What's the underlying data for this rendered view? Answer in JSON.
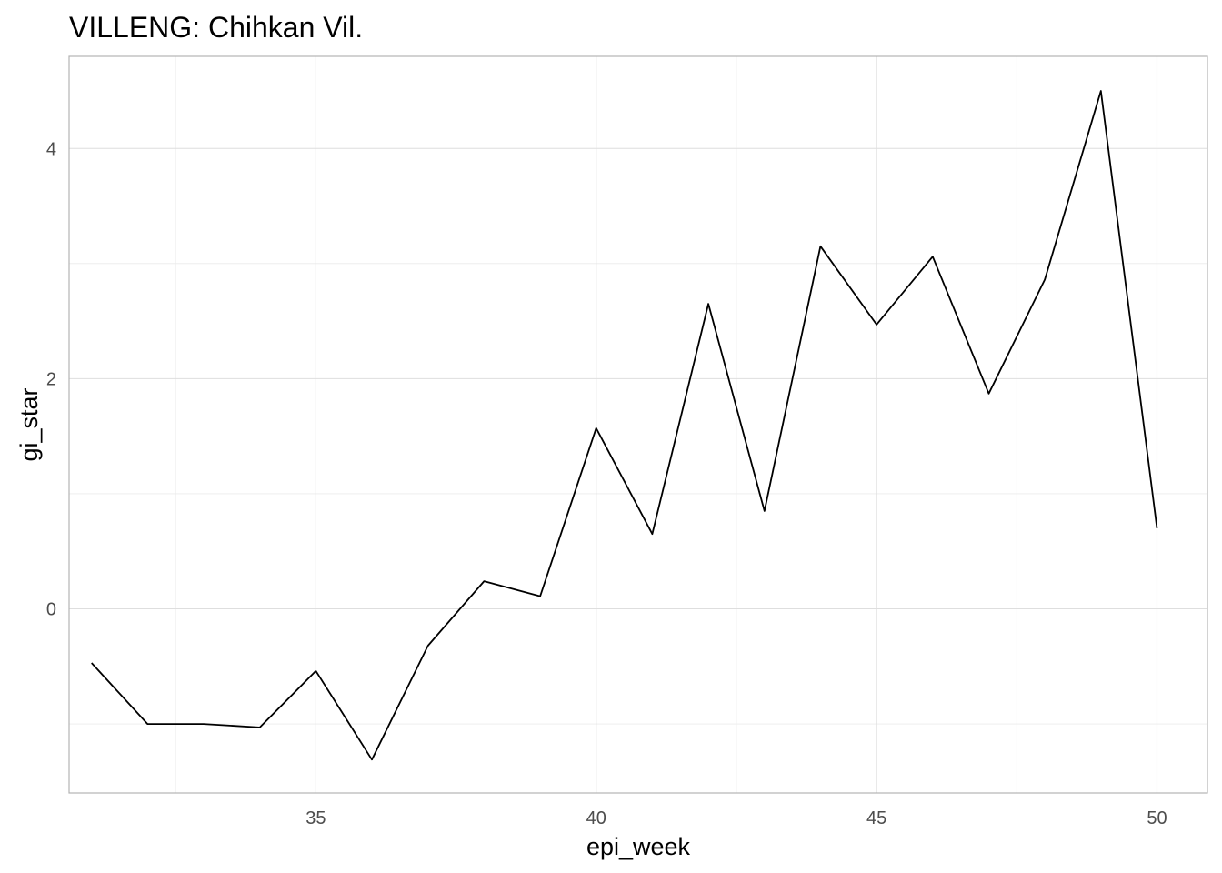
{
  "chart_data": {
    "type": "line",
    "title": "VILLENG: Chihkan Vil.",
    "xlabel": "epi_week",
    "ylabel": "gi_star",
    "xlim": [
      30.6,
      50.9
    ],
    "ylim": [
      -1.6,
      4.8
    ],
    "x_ticks": [
      35,
      40,
      45,
      50
    ],
    "x_minor_ticks": [
      32.5,
      37.5,
      42.5,
      47.5
    ],
    "y_ticks": [
      0,
      2,
      4
    ],
    "y_minor_ticks": [
      -1,
      1,
      3
    ],
    "grid": true,
    "legend": "none",
    "line_color": "#000000",
    "series": [
      {
        "x": [
          31,
          32,
          33,
          34,
          35,
          36,
          37,
          38,
          39,
          40,
          41,
          42,
          43,
          44,
          45,
          46,
          47,
          48,
          49,
          50
        ],
        "values": [
          -0.47,
          -1.0,
          -1.0,
          -1.03,
          -0.54,
          -1.31,
          -0.32,
          0.24,
          0.11,
          1.57,
          0.65,
          2.65,
          0.85,
          3.15,
          2.47,
          3.06,
          1.87,
          2.86,
          4.5,
          0.7
        ]
      }
    ]
  }
}
